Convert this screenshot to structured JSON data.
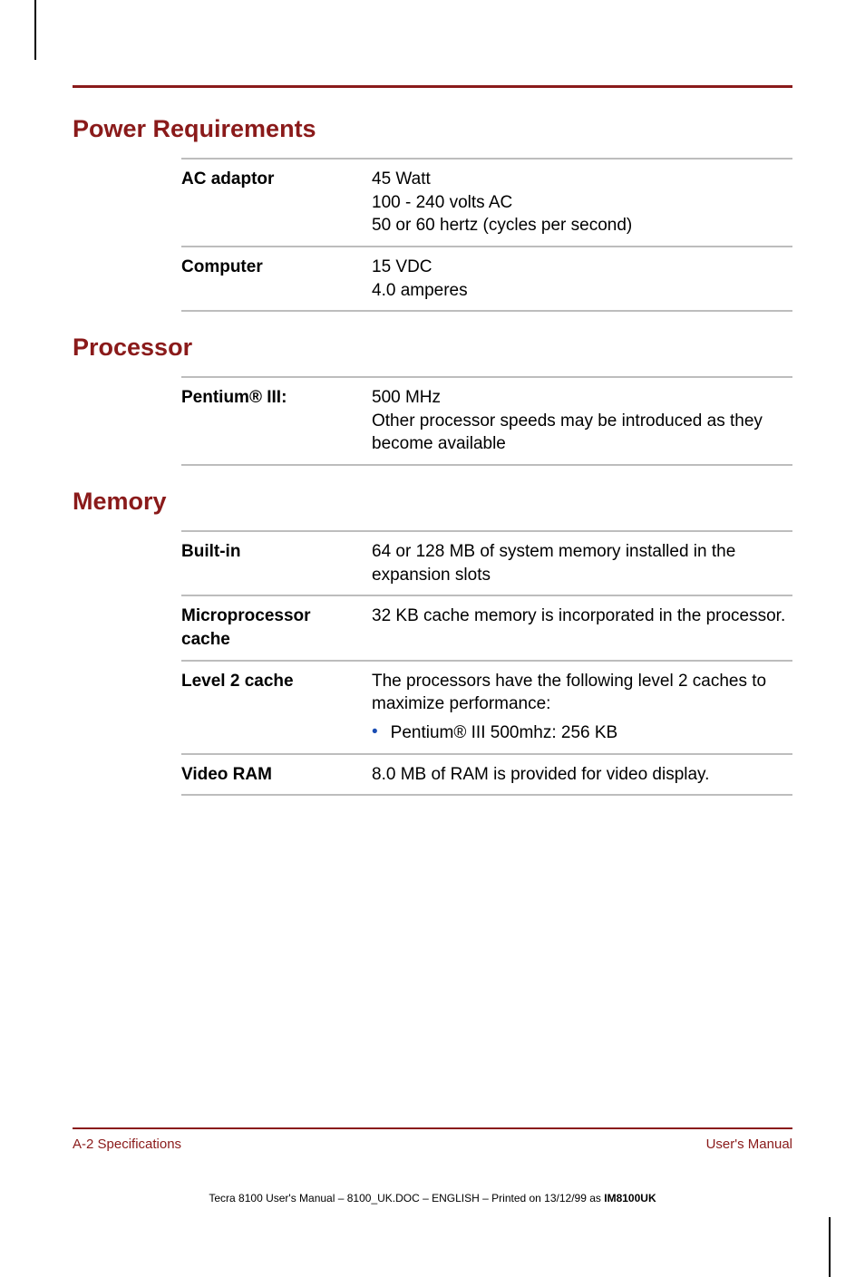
{
  "sections": {
    "power": {
      "title": "Power Requirements",
      "rows": {
        "ac": {
          "label": "AC adaptor",
          "l1": "45 Watt",
          "l2": "100 - 240 volts AC",
          "l3": "50 or 60 hertz (cycles per second)"
        },
        "computer": {
          "label": "Computer",
          "l1": "15 VDC",
          "l2": "4.0 amperes"
        }
      }
    },
    "processor": {
      "title": "Processor",
      "rows": {
        "pentium": {
          "label": "Pentium® III:",
          "l1": "500 MHz",
          "l2": "Other processor speeds may be introduced as they become available"
        }
      }
    },
    "memory": {
      "title": "Memory",
      "rows": {
        "builtin": {
          "label": "Built-in",
          "value": "64 or 128 MB of system memory installed in the expansion slots"
        },
        "mpcache": {
          "label": "Microprocessor cache",
          "value": "32 KB cache memory is incorporated in the processor."
        },
        "l2": {
          "label": "Level 2 cache",
          "intro": "The processors have the following level 2 caches to maximize performance:",
          "bullet": "Pentium® III 500mhz:   256 KB"
        },
        "vram": {
          "label": "Video RAM",
          "value": "8.0 MB of RAM is provided for video display."
        }
      }
    }
  },
  "footer": {
    "left": "A-2  Specifications",
    "right": "User's Manual"
  },
  "printline": {
    "pre": "Tecra 8100 User's Manual  – 8100_UK.DOC – ENGLISH – Printed on 13/12/99 as ",
    "bold": "IM8100UK"
  },
  "colors": {
    "accent": "#8a1a1a",
    "rule_gray": "#bdbdbd",
    "bullet": "#1a4db3",
    "text": "#000000",
    "background": "#ffffff"
  }
}
